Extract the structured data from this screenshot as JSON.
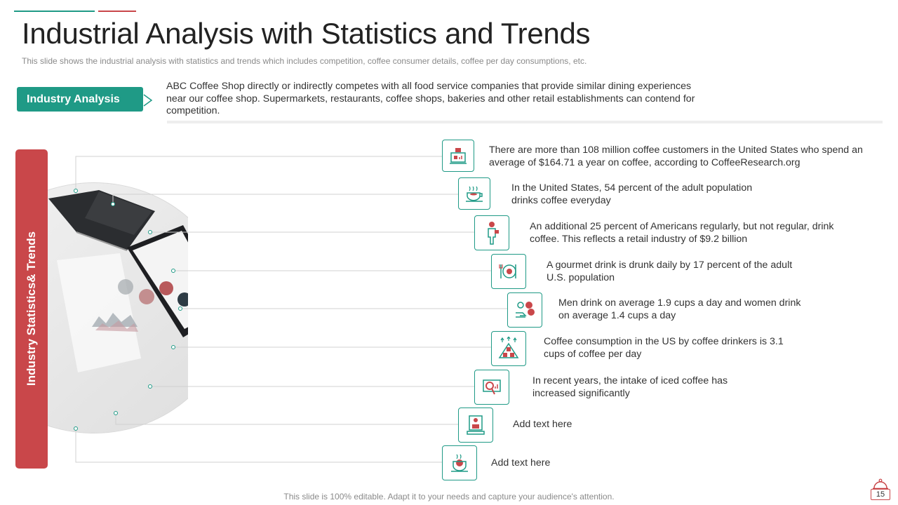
{
  "title": "Industrial Analysis with Statistics and Trends",
  "subtitle": "This slide shows the industrial analysis with statistics and trends which includes competition, coffee consumer details, coffee per day consumptions, etc.",
  "industry_analysis": {
    "label": "Industry Analysis",
    "text": "ABC Coffee Shop directly or indirectly competes with all food service companies that provide similar dining experiences near our coffee shop. Supermarkets, restaurants, coffee shops, bakeries and other retail establishments can contend for competition."
  },
  "side_label": "Industry Statistics& Trends",
  "stats": [
    {
      "text": "There are more than 108 million coffee customers in the United States who spend an average of $164.71 a year on coffee, according to CoffeeResearch.org",
      "icon": "laptop-coffee-icon"
    },
    {
      "text": "In the United States, 54 percent of the adult population drinks coffee everyday",
      "icon": "coffee-cup-icon"
    },
    {
      "text": "An additional 25 percent of Americans regularly, but not regular, drink coffee. This reflects a retail industry of $9.2 billion",
      "icon": "person-drinking-icon"
    },
    {
      "text": "A gourmet drink is drunk daily by 17 percent of the adult U.S. population",
      "icon": "plate-cutlery-icon"
    },
    {
      "text": "Men drink on average 1.9 cups a day and women drink on average 1.4 cups a day",
      "icon": "money-coins-icon"
    },
    {
      "text": "Coffee consumption in the US by coffee drinkers is 3.1 cups of coffee per day",
      "icon": "growth-pyramid-icon"
    },
    {
      "text": "In recent years, the intake of iced coffee has increased significantly",
      "icon": "magnifier-chart-icon"
    },
    {
      "text": "Add text here",
      "icon": "coffee-machine-icon"
    },
    {
      "text": "Add text here",
      "icon": "hot-drink-icon"
    }
  ],
  "footer": "This slide is 100% editable. Adapt it to your needs and capture your audience's attention.",
  "page_number": "15",
  "colors": {
    "teal": "#1f9a86",
    "red": "#c9474a",
    "text": "#333333",
    "muted": "#8a8a8a"
  }
}
